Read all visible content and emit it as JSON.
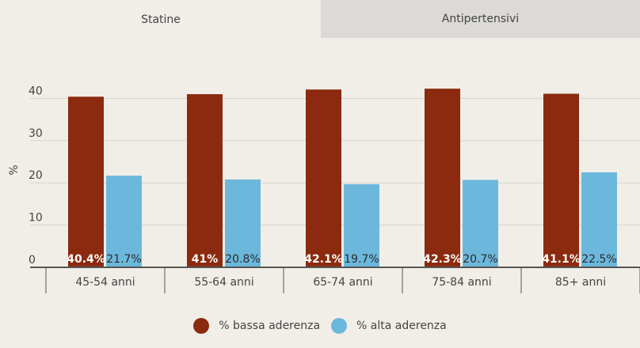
{
  "tabs": [
    {
      "label": "Statine",
      "active": true
    },
    {
      "label": "Antipertensivi",
      "active": false
    }
  ],
  "colors": {
    "low": "#8b2a0e",
    "high": "#6cb7dc",
    "grid": "#d6d3ce",
    "axis": "#555555",
    "label_text": "#ffffff",
    "high_label_text": "#2b2b2b"
  },
  "legend": {
    "low": "% bassa aderenza",
    "high": "% alta aderenza"
  },
  "chart_data": {
    "type": "bar",
    "ylabel": "%",
    "ylim": [
      0,
      45
    ],
    "yticks": [
      0,
      10,
      20,
      30,
      40
    ],
    "grid": true,
    "legend_position": "bottom",
    "categories": [
      "45-54 anni",
      "55-64 anni",
      "65-74 anni",
      "75-84 anni",
      "85+ anni"
    ],
    "series": [
      {
        "name": "% bassa aderenza",
        "values": [
          40.4,
          41,
          42.1,
          42.3,
          41.1
        ],
        "labels": [
          "40.4%",
          "41%",
          "42.1%",
          "42.3%",
          "41.1%"
        ]
      },
      {
        "name": "% alta aderenza",
        "values": [
          21.7,
          20.8,
          19.7,
          20.7,
          22.5
        ],
        "labels": [
          "21.7%",
          "20.8%",
          "19.7%",
          "20.7%",
          "22.5%"
        ]
      }
    ]
  }
}
